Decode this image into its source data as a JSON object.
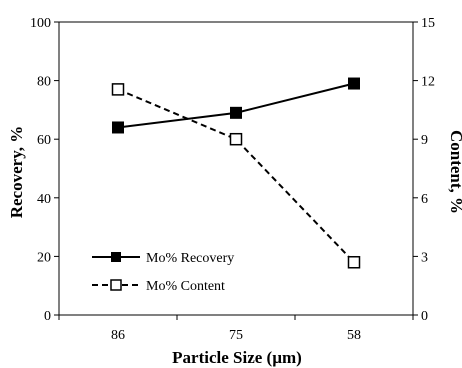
{
  "chart_data": {
    "type": "line",
    "categories": [
      "86",
      "75",
      "58"
    ],
    "xlabel": "Particle Size (µm)",
    "ylabel_left": "Recovery, %",
    "ylabel_right": "Content, %",
    "y_left": {
      "range": [
        0,
        100
      ],
      "ticks": [
        "0",
        "20",
        "40",
        "60",
        "80",
        "100"
      ]
    },
    "y_right": {
      "range": [
        0,
        15
      ],
      "ticks": [
        "0",
        "3",
        "6",
        "9",
        "12",
        "15"
      ]
    },
    "grid": false,
    "legend_position": "bottom-left",
    "series": [
      {
        "name": "Mo% Recovery",
        "axis": "left",
        "values": [
          64,
          69,
          79
        ],
        "marker": "filled-square",
        "line": "solid",
        "color": "#000000"
      },
      {
        "name": "Mo% Content",
        "axis": "right",
        "values": [
          11.55,
          9.0,
          2.7
        ],
        "marker": "open-square",
        "line": "dashed",
        "color": "#000000"
      }
    ]
  }
}
